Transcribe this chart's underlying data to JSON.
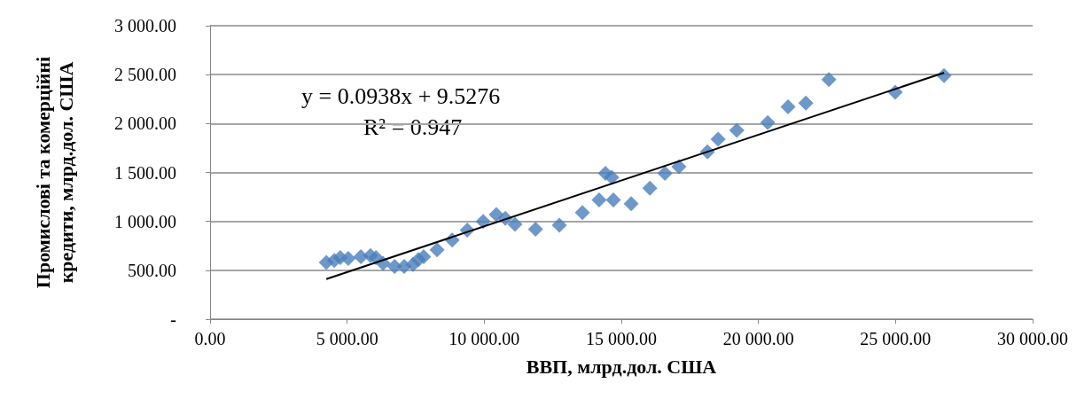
{
  "chart_data": {
    "type": "scatter",
    "xlabel": "ВВП, млрд.дол. США",
    "ylabel": "Промислові та комерційні\nкредити, млрд.дол. США",
    "annotations": [
      "y = 0.0938x + 9.5276",
      "R² = 0.947"
    ],
    "xlim": [
      0,
      30000
    ],
    "xticks": [
      {
        "value": 0,
        "label": "0.00"
      },
      {
        "value": 5000,
        "label": "5 000.00"
      },
      {
        "value": 10000,
        "label": "10 000.00"
      },
      {
        "value": 15000,
        "label": "15 000.00"
      },
      {
        "value": 20000,
        "label": "20 000.00"
      },
      {
        "value": 25000,
        "label": "25 000.00"
      },
      {
        "value": 30000,
        "label": "30 000.00"
      }
    ],
    "ylim": [
      0,
      3000
    ],
    "yticks": [
      {
        "value": 0,
        "label": "-"
      },
      {
        "value": 500,
        "label": "500.00"
      },
      {
        "value": 1000,
        "label": "1 000.00"
      },
      {
        "value": 1500,
        "label": "1 500.00"
      },
      {
        "value": 2000,
        "label": "2 000.00"
      },
      {
        "value": 2500,
        "label": "2 500.00"
      },
      {
        "value": 3000,
        "label": "3 000.00"
      }
    ],
    "grid": "y",
    "series": [
      {
        "color": "#4a7ebb",
        "marker": "diamond",
        "x": [
          4240,
          4530,
          4750,
          5040,
          5500,
          5850,
          6050,
          6310,
          6730,
          7080,
          7400,
          7600,
          7790,
          8280,
          8830,
          9380,
          9960,
          10440,
          10770,
          11120,
          11870,
          12740,
          13580,
          14190,
          14420,
          14650,
          14710,
          15360,
          16040,
          16590,
          17100,
          18140,
          18530,
          19210,
          20340,
          21080,
          21730,
          22570,
          24990,
          26770
        ],
        "values": [
          580,
          600,
          630,
          620,
          640,
          650,
          630,
          570,
          540,
          540,
          560,
          610,
          640,
          710,
          810,
          910,
          1000,
          1070,
          1030,
          970,
          920,
          960,
          1090,
          1220,
          1490,
          1450,
          1220,
          1180,
          1340,
          1490,
          1560,
          1710,
          1840,
          1930,
          2010,
          2170,
          2210,
          2450,
          2320,
          2490
        ]
      },
      {
        "type": "line",
        "color": "#000000",
        "marker": "none",
        "line_style": "solid",
        "x": [
          4240,
          26770
        ],
        "values": [
          410,
          2520
        ]
      }
    ]
  }
}
